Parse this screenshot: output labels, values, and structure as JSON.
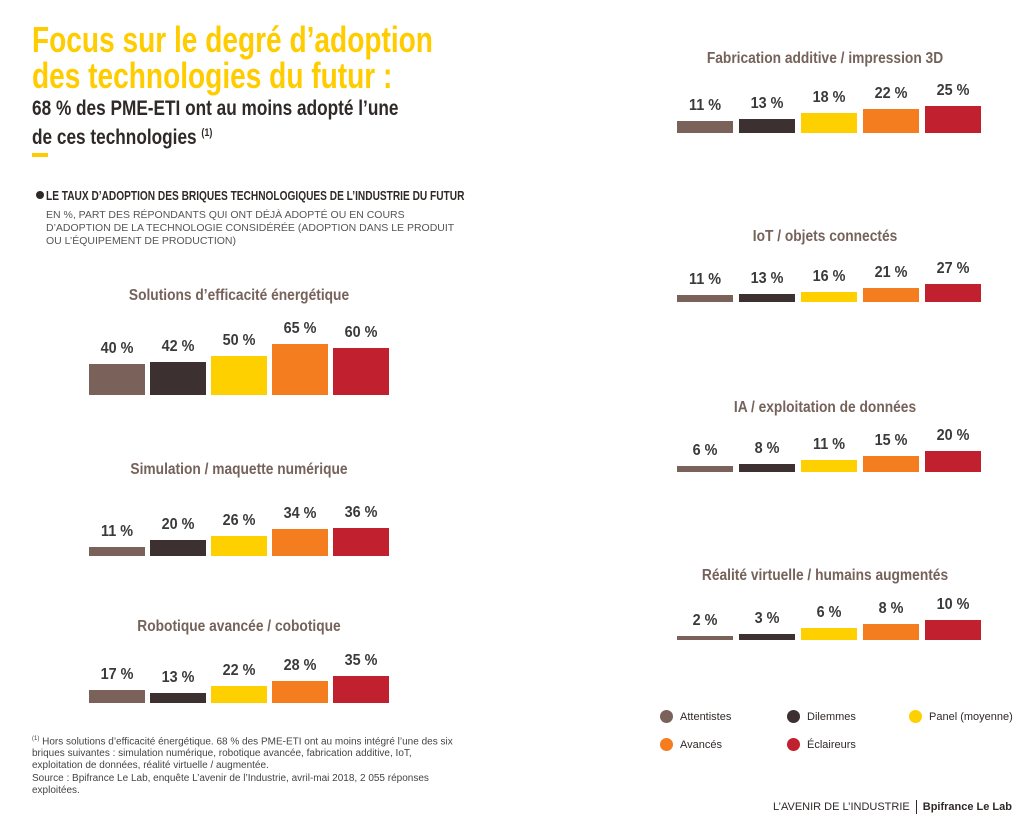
{
  "header": {
    "title_line1": "Focus sur le degré d’adoption",
    "title_line2": "des technologies du futur :",
    "subtitle_line1": "68 % des PME-ETI ont au moins adopté l’une",
    "subtitle_line2": "de ces technologies",
    "subtitle_note": "(1)"
  },
  "section": {
    "title": "LE TAUX D’ADOPTION DES BRIQUES TECHNOLOGIQUES DE L’INDUSTRIE DU FUTUR",
    "description": "EN %, PART DES RÉPONDANTS QUI ONT DÉJÀ ADOPTÉ OU EN COURS D’ADOPTION DE LA TECHNOLOGIE CONSIDÉRÉE (ADOPTION DANS LE PRODUIT OU L’ÉQUIPEMENT DE PRODUCTION)"
  },
  "colors": {
    "accent_yellow": "#ffcc00",
    "attentistes": "#7a6159",
    "dilemmes": "#3d3030",
    "panel": "#ffd000",
    "avances": "#f47d20",
    "eclaireurs": "#c1202f"
  },
  "chart_data": [
    {
      "type": "bar",
      "title": "Solutions d’efficacité énergétique",
      "categories": [
        "Attentistes",
        "Dilemmes",
        "Panel (moyenne)",
        "Avancés",
        "Éclaireurs"
      ],
      "values": [
        40,
        42,
        50,
        65,
        60
      ],
      "labels": [
        "40 %",
        "42 %",
        "50 %",
        "65 %",
        "60 %"
      ]
    },
    {
      "type": "bar",
      "title": "Simulation / maquette numérique",
      "categories": [
        "Attentistes",
        "Dilemmes",
        "Panel (moyenne)",
        "Avancés",
        "Éclaireurs"
      ],
      "values": [
        11,
        20,
        26,
        34,
        36
      ],
      "labels": [
        "11 %",
        "20 %",
        "26 %",
        "34 %",
        "36 %"
      ]
    },
    {
      "type": "bar",
      "title": "Robotique avancée / cobotique",
      "categories": [
        "Attentistes",
        "Dilemmes",
        "Panel (moyenne)",
        "Avancés",
        "Éclaireurs"
      ],
      "values": [
        17,
        13,
        22,
        28,
        35
      ],
      "labels": [
        "17 %",
        "13 %",
        "22 %",
        "28 %",
        "35 %"
      ]
    },
    {
      "type": "bar",
      "title": "Fabrication additive / impression 3D",
      "categories": [
        "Attentistes",
        "Dilemmes",
        "Panel (moyenne)",
        "Avancés",
        "Éclaireurs"
      ],
      "values": [
        11,
        13,
        18,
        22,
        25
      ],
      "labels": [
        "11 %",
        "13 %",
        "18 %",
        "22 %",
        "25 %"
      ]
    },
    {
      "type": "bar",
      "title": "IoT / objets connectés",
      "categories": [
        "Attentistes",
        "Dilemmes",
        "Panel (moyenne)",
        "Avancés",
        "Éclaireurs"
      ],
      "values": [
        11,
        13,
        16,
        21,
        27
      ],
      "labels": [
        "11 %",
        "13 %",
        "16 %",
        "21 %",
        "27 %"
      ]
    },
    {
      "type": "bar",
      "title": "IA / exploitation de données",
      "categories": [
        "Attentistes",
        "Dilemmes",
        "Panel (moyenne)",
        "Avancés",
        "Éclaireurs"
      ],
      "values": [
        6,
        8,
        11,
        15,
        20
      ],
      "labels": [
        "6 %",
        "8 %",
        "11 %",
        "15 %",
        "20 %"
      ]
    },
    {
      "type": "bar",
      "title": "Réalité virtuelle / humains augmentés",
      "categories": [
        "Attentistes",
        "Dilemmes",
        "Panel (moyenne)",
        "Avancés",
        "Éclaireurs"
      ],
      "values": [
        2,
        3,
        6,
        8,
        10
      ],
      "labels": [
        "2 %",
        "3 %",
        "6 %",
        "8 %",
        "10 %"
      ]
    }
  ],
  "legend": [
    {
      "label": "Attentistes",
      "color": "#7a6159"
    },
    {
      "label": "Dilemmes",
      "color": "#3d3030"
    },
    {
      "label": "Panel (moyenne)",
      "color": "#ffd000"
    },
    {
      "label": "Avancés",
      "color": "#f47d20"
    },
    {
      "label": "Éclaireurs",
      "color": "#c1202f"
    }
  ],
  "footnote": {
    "marker": "(1)",
    "text": " Hors solutions d’efficacité énergétique. 68 % des PME-ETI ont au moins intégré l’une des six briques suivantes : simulation numérique, robotique avancée, fabrication additive, IoT, exploitation de données, réalité virtuelle / augmentée."
  },
  "source": "Source : Bpifrance Le Lab, enquête L’avenir de l’Industrie, avril-mai 2018, 2 055 réponses exploitées.",
  "footer": {
    "left": "L’AVENIR DE L’INDUSTRIE",
    "right": "Bpifrance Le Lab"
  }
}
